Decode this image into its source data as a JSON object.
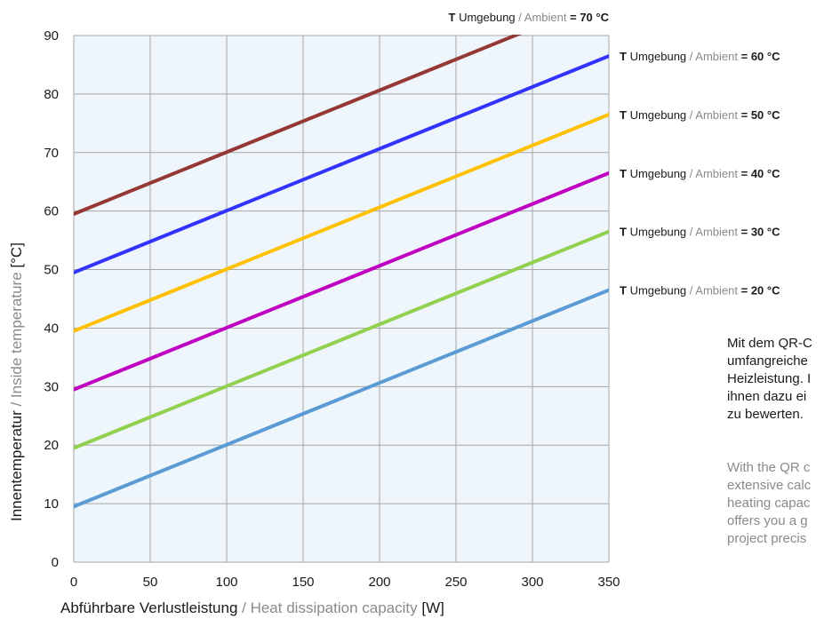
{
  "chart_data": {
    "type": "line",
    "x": [
      0,
      350
    ],
    "series": [
      {
        "name": "T Umgebung / Ambient = 20 °C",
        "values": [
          9.5,
          46.5
        ],
        "color": "#5b9bd5"
      },
      {
        "name": "T Umgebung / Ambient = 30 °C",
        "values": [
          19.5,
          56.5
        ],
        "color": "#92d050"
      },
      {
        "name": "T Umgebung / Ambient = 40 °C",
        "values": [
          29.5,
          66.5
        ],
        "color": "#c000c0"
      },
      {
        "name": "T Umgebung / Ambient = 50 °C",
        "values": [
          39.5,
          76.5
        ],
        "color": "#ffc000"
      },
      {
        "name": "T Umgebung / Ambient = 60 °C",
        "values": [
          49.5,
          86.5
        ],
        "color": "#3333ff"
      },
      {
        "name": "T Umgebung / Ambient = 70 °C",
        "values": [
          59.5,
          96.5
        ],
        "color": "#953735"
      }
    ],
    "xlim": [
      0,
      350
    ],
    "ylim": [
      0,
      90
    ],
    "xticks": [
      "0",
      "50",
      "100",
      "150",
      "200",
      "250",
      "300",
      "350"
    ],
    "yticks": [
      "0",
      "10",
      "20",
      "30",
      "40",
      "50",
      "60",
      "70",
      "80",
      "90"
    ],
    "xlabel": {
      "de": "Abführbare Verlustleistung",
      "sep": " / ",
      "en": "Heat dissipation capacity",
      "unit": " [W]"
    },
    "ylabel": {
      "de": "Innentemperatur",
      "sep": " / ",
      "en": "Inside temperature",
      "unit": " [°C]"
    },
    "grid": true,
    "plot_background": "#eef5fb",
    "legend_placement": "right, at line ends",
    "legend_parts": {
      "bold_prefix": "T",
      "de": " Umgebung",
      "sep": " / ",
      "en": "Ambient",
      "eq": " = "
    },
    "legend_values": [
      "20 °C",
      "30 °C",
      "40 °C",
      "50 °C",
      "60 °C",
      "70 °C"
    ]
  },
  "side_text": {
    "de": "Mit dem QR-C\numfangreiche\nHeizleistung. I\nihnen dazu ei\nzu bewerten.",
    "en": "With the QR c\nextensive calc\nheating capac\noffers you a g\nproject precis"
  }
}
